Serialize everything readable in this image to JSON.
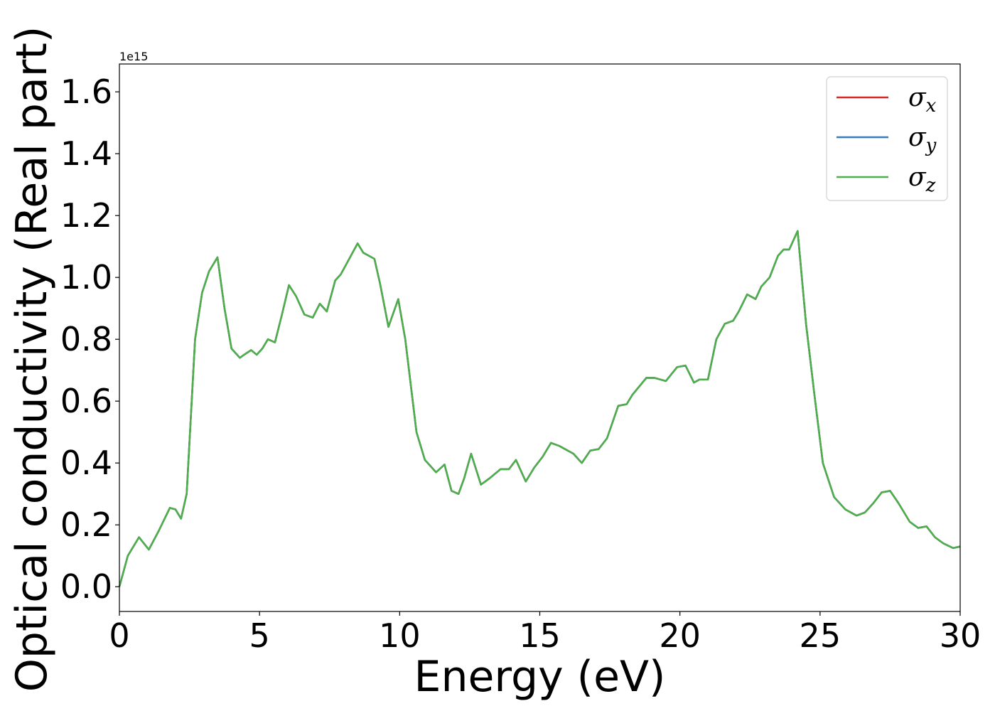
{
  "chart_data": {
    "type": "line",
    "xlabel": "Energy (eV)",
    "ylabel": "Optical conductivity (Real part)",
    "y_offset_label": "1e15",
    "xlim": [
      0,
      30
    ],
    "ylim": [
      -0.08,
      1.69
    ],
    "xticks": [
      0,
      5,
      10,
      15,
      20,
      25,
      30
    ],
    "xtick_labels": [
      "0",
      "5",
      "10",
      "15",
      "20",
      "25",
      "30"
    ],
    "yticks": [
      0.0,
      0.2,
      0.4,
      0.6,
      0.8,
      1.0,
      1.2,
      1.4,
      1.6
    ],
    "ytick_labels": [
      "0.0",
      "0.2",
      "0.4",
      "0.6",
      "0.8",
      "1.0",
      "1.2",
      "1.4",
      "1.6"
    ],
    "grid": false,
    "legend_position": "top-right",
    "x": [
      0,
      0.3,
      0.7,
      1.05,
      1.4,
      1.8,
      2.0,
      2.2,
      2.4,
      2.7,
      2.95,
      3.2,
      3.5,
      3.75,
      4.0,
      4.3,
      4.45,
      4.7,
      4.9,
      5.1,
      5.3,
      5.55,
      5.8,
      6.05,
      6.3,
      6.6,
      6.9,
      7.15,
      7.4,
      7.7,
      7.9,
      8.2,
      8.5,
      8.7,
      9.1,
      9.3,
      9.6,
      9.95,
      10.2,
      10.6,
      10.9,
      11.3,
      11.6,
      11.85,
      12.1,
      12.3,
      12.55,
      12.9,
      13.2,
      13.6,
      13.9,
      14.15,
      14.5,
      14.8,
      15.1,
      15.4,
      15.7,
      15.9,
      16.2,
      16.5,
      16.8,
      17.1,
      17.4,
      17.8,
      18.1,
      18.3,
      18.8,
      19.1,
      19.5,
      19.9,
      20.2,
      20.5,
      20.7,
      21.0,
      21.3,
      21.6,
      21.9,
      22.1,
      22.4,
      22.7,
      22.9,
      23.2,
      23.5,
      23.7,
      23.9,
      24.2,
      24.5,
      24.8,
      25.1,
      25.5,
      25.9,
      26.3,
      26.6,
      26.9,
      27.2,
      27.5,
      27.8,
      28.2,
      28.5,
      28.8,
      29.1,
      29.4,
      29.75,
      30
    ],
    "series": [
      {
        "name": "σx",
        "color": "#d62728",
        "values": [
          0.0,
          0.1,
          0.16,
          0.12,
          0.18,
          0.255,
          0.25,
          0.22,
          0.3,
          0.8,
          0.95,
          1.02,
          1.065,
          0.9,
          0.77,
          0.74,
          0.75,
          0.765,
          0.75,
          0.77,
          0.8,
          0.79,
          0.88,
          0.975,
          0.94,
          0.88,
          0.87,
          0.915,
          0.89,
          0.99,
          1.01,
          1.06,
          1.11,
          1.08,
          1.06,
          0.98,
          0.84,
          0.93,
          0.8,
          0.5,
          0.41,
          0.37,
          0.395,
          0.31,
          0.3,
          0.35,
          0.43,
          0.33,
          0.35,
          0.38,
          0.38,
          0.41,
          0.34,
          0.385,
          0.42,
          0.465,
          0.455,
          0.445,
          0.43,
          0.4,
          0.44,
          0.445,
          0.48,
          0.585,
          0.59,
          0.62,
          0.675,
          0.675,
          0.665,
          0.71,
          0.715,
          0.66,
          0.67,
          0.67,
          0.8,
          0.85,
          0.86,
          0.89,
          0.945,
          0.93,
          0.97,
          1.0,
          1.07,
          1.09,
          1.09,
          1.15,
          0.85,
          0.62,
          0.4,
          0.29,
          0.25,
          0.23,
          0.24,
          0.27,
          0.305,
          0.31,
          0.27,
          0.21,
          0.19,
          0.195,
          0.16,
          0.14,
          0.125,
          0.13
        ]
      },
      {
        "name": "σy",
        "color": "#377eb8",
        "values": [
          0.0,
          0.1,
          0.16,
          0.12,
          0.18,
          0.255,
          0.25,
          0.22,
          0.3,
          0.8,
          0.95,
          1.02,
          1.065,
          0.9,
          0.77,
          0.74,
          0.75,
          0.765,
          0.75,
          0.77,
          0.8,
          0.79,
          0.88,
          0.975,
          0.94,
          0.88,
          0.87,
          0.915,
          0.89,
          0.99,
          1.01,
          1.06,
          1.11,
          1.08,
          1.06,
          0.98,
          0.84,
          0.93,
          0.8,
          0.5,
          0.41,
          0.37,
          0.395,
          0.31,
          0.3,
          0.35,
          0.43,
          0.33,
          0.35,
          0.38,
          0.38,
          0.41,
          0.34,
          0.385,
          0.42,
          0.465,
          0.455,
          0.445,
          0.43,
          0.4,
          0.44,
          0.445,
          0.48,
          0.585,
          0.59,
          0.62,
          0.675,
          0.675,
          0.665,
          0.71,
          0.715,
          0.66,
          0.67,
          0.67,
          0.8,
          0.85,
          0.86,
          0.89,
          0.945,
          0.93,
          0.97,
          1.0,
          1.07,
          1.09,
          1.09,
          1.15,
          0.85,
          0.62,
          0.4,
          0.29,
          0.25,
          0.23,
          0.24,
          0.27,
          0.305,
          0.31,
          0.27,
          0.21,
          0.19,
          0.195,
          0.16,
          0.14,
          0.125,
          0.13
        ]
      },
      {
        "name": "σz",
        "color": "#4daf4a",
        "values": [
          0.0,
          0.1,
          0.16,
          0.12,
          0.18,
          0.255,
          0.25,
          0.22,
          0.3,
          0.8,
          0.95,
          1.02,
          1.065,
          0.9,
          0.77,
          0.74,
          0.75,
          0.765,
          0.75,
          0.77,
          0.8,
          0.79,
          0.88,
          0.975,
          0.94,
          0.88,
          0.87,
          0.915,
          0.89,
          0.99,
          1.01,
          1.06,
          1.11,
          1.08,
          1.06,
          0.98,
          0.84,
          0.93,
          0.8,
          0.5,
          0.41,
          0.37,
          0.395,
          0.31,
          0.3,
          0.35,
          0.43,
          0.33,
          0.35,
          0.38,
          0.38,
          0.41,
          0.34,
          0.385,
          0.42,
          0.465,
          0.455,
          0.445,
          0.43,
          0.4,
          0.44,
          0.445,
          0.48,
          0.585,
          0.59,
          0.62,
          0.675,
          0.675,
          0.665,
          0.71,
          0.715,
          0.66,
          0.67,
          0.67,
          0.8,
          0.85,
          0.86,
          0.89,
          0.945,
          0.93,
          0.97,
          1.0,
          1.07,
          1.09,
          1.09,
          1.15,
          0.85,
          0.62,
          0.4,
          0.29,
          0.25,
          0.23,
          0.24,
          0.27,
          0.305,
          0.31,
          0.27,
          0.21,
          0.19,
          0.195,
          0.16,
          0.14,
          0.125,
          0.13
        ]
      }
    ],
    "legend": [
      {
        "symbol": "σ",
        "subscript": "x",
        "color": "#d62728"
      },
      {
        "symbol": "σ",
        "subscript": "y",
        "color": "#377eb8"
      },
      {
        "symbol": "σ",
        "subscript": "z",
        "color": "#4daf4a"
      }
    ]
  }
}
